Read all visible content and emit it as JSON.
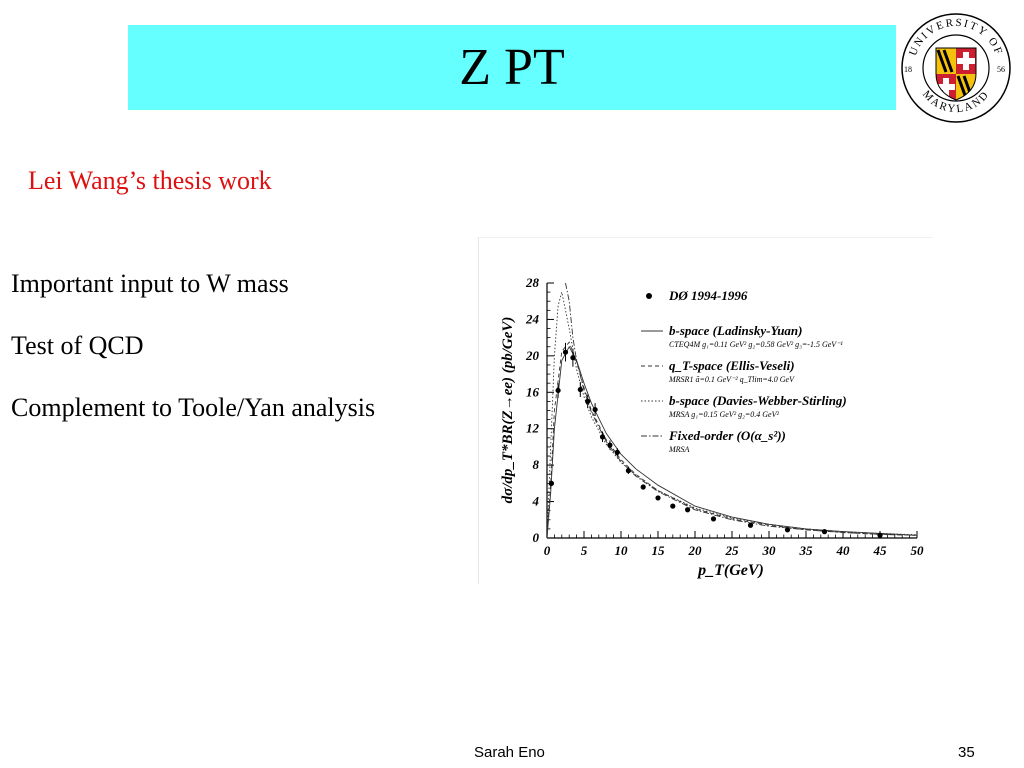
{
  "slide": {
    "title": "Z PT",
    "subtitle": "Lei Wang’s thesis work",
    "bullets": [
      "Important input to W mass",
      "Test of QCD",
      "Complement to Toole/Yan analysis"
    ],
    "footer_author": "Sarah Eno",
    "page_number": "35"
  },
  "logo": {
    "top_text": "UNIVERSITY OF",
    "bottom_text": "MARYLAND",
    "year_left": "18",
    "year_right": "56",
    "colors": {
      "red": "#cc1f2f",
      "gold": "#f4c20d",
      "black": "#000000"
    }
  },
  "colors": {
    "title_bar": "#66ffff",
    "subtitle": "#dd1111"
  },
  "chart_data": {
    "type": "scatter",
    "title": "",
    "xlabel": "p_T(GeV)",
    "ylabel": "dσ/dp_T*BR(Z→ee) (pb/GeV)",
    "xlim": [
      0,
      50
    ],
    "ylim": [
      0,
      28
    ],
    "x_ticks": [
      "0",
      "5",
      "10",
      "15",
      "20",
      "25",
      "30",
      "35",
      "40",
      "45",
      "50"
    ],
    "y_ticks": [
      "0",
      "4",
      "8",
      "12",
      "16",
      "20",
      "24",
      "28"
    ],
    "grid": false,
    "legend_position": "top-right",
    "legend": [
      {
        "label": "DØ 1994-1996",
        "detail": "",
        "style": "marker"
      },
      {
        "label": "b-space (Ladinsky-Yuan)",
        "detail": "CTEQ4M g₁=0.11 GeV² g₂=0.58 GeV² g₃=-1.5 GeV⁻¹",
        "style": "solid"
      },
      {
        "label": "q_T-space (Ellis-Veseli)",
        "detail": "MRSR1 ã=0.1 GeV⁻² q_Tlim=4.0 GeV",
        "style": "dashed"
      },
      {
        "label": "b-space (Davies-Webber-Stirling)",
        "detail": "MRSA g₁=0.15 GeV² g₂=0.4 GeV²",
        "style": "dotted"
      },
      {
        "label": "Fixed-order (O(α_s²))",
        "detail": "MRSA",
        "style": "dashdot"
      }
    ],
    "data_points": {
      "name": "DØ 1994-1996",
      "x": [
        0.6,
        1.5,
        2.5,
        3.5,
        4.5,
        5.5,
        6.5,
        7.5,
        8.5,
        9.5,
        11.0,
        13.0,
        15.0,
        17.0,
        19.0,
        22.5,
        27.5,
        32.5,
        37.5,
        45.0
      ],
      "y": [
        6.0,
        16.2,
        20.4,
        19.8,
        16.3,
        15.0,
        14.1,
        11.1,
        10.2,
        9.4,
        7.4,
        5.6,
        4.4,
        3.5,
        3.1,
        2.1,
        1.4,
        0.9,
        0.7,
        0.3
      ]
    },
    "series": [
      {
        "name": "b-space (Ladinsky-Yuan)",
        "style": "solid",
        "x": [
          0,
          0.5,
          1,
          2,
          3,
          4,
          5,
          6,
          8,
          10,
          12,
          15,
          20,
          25,
          30,
          35,
          40,
          45,
          50
        ],
        "y": [
          0,
          5,
          12,
          19.5,
          21,
          19.5,
          17,
          14.8,
          11.5,
          9.2,
          7.6,
          5.8,
          3.5,
          2.3,
          1.5,
          1.0,
          0.7,
          0.5,
          0.3
        ]
      },
      {
        "name": "q_T-space (Ellis-Veseli)",
        "style": "dashed",
        "x": [
          0,
          0.5,
          1,
          2,
          3,
          4,
          5,
          6,
          8,
          10,
          12,
          15,
          20,
          25,
          30,
          35,
          40,
          45,
          50
        ],
        "y": [
          0,
          6,
          14,
          20.5,
          21.5,
          19.3,
          16.5,
          14.0,
          10.8,
          8.6,
          7.0,
          5.2,
          3.2,
          2.1,
          1.4,
          0.9,
          0.6,
          0.4,
          0.3
        ]
      },
      {
        "name": "b-space (Davies-Webber-Stirling)",
        "style": "dotted",
        "x": [
          0,
          0.5,
          1,
          1.5,
          2,
          3,
          4,
          5,
          6,
          8,
          10,
          12,
          15,
          20,
          25,
          30,
          35,
          40,
          45,
          50
        ],
        "y": [
          0,
          10,
          20,
          25.5,
          27,
          23,
          18.5,
          15.5,
          13.3,
          10.3,
          8.3,
          6.9,
          5.2,
          3.3,
          2.2,
          1.5,
          1.0,
          0.7,
          0.5,
          0.35
        ]
      },
      {
        "name": "Fixed-order (O(α_s²))",
        "style": "dashdot",
        "x": [
          2.5,
          3,
          3.5,
          4,
          5,
          6,
          8,
          10,
          12,
          15,
          20,
          25,
          30,
          35,
          40,
          45,
          50
        ],
        "y": [
          28,
          26,
          22,
          19.5,
          16.2,
          13.8,
          10.6,
          8.4,
          6.8,
          5.1,
          3.1,
          2.0,
          1.3,
          0.9,
          0.6,
          0.4,
          0.3
        ]
      }
    ]
  }
}
